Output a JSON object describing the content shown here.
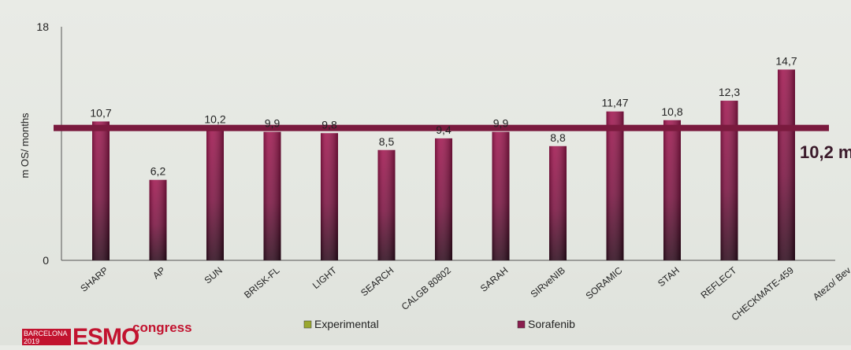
{
  "chart_data": {
    "type": "bar",
    "ylabel": "m OS/ months",
    "ylim": [
      0,
      18
    ],
    "yticks": [
      "0",
      "18"
    ],
    "categories": [
      "SHARP",
      "AP",
      "SUN",
      "BRISK-FL",
      "LIGHT",
      "SEARCH",
      "CALGB 80802",
      "SARAH",
      "SIRveNIB",
      "SORAMIC",
      "STAH",
      "REFLECT",
      "CHECKMATE-459",
      "Atezo/ Bev"
    ],
    "series": [
      {
        "name": "Sorafenib",
        "values": [
          10.7,
          6.2,
          10.2,
          9.9,
          9.8,
          8.5,
          9.4,
          9.9,
          8.8,
          11.47,
          10.8,
          12.3,
          14.7,
          null
        ],
        "labels": [
          "10,7",
          "6,2",
          "10,2",
          "9,9",
          "9,8",
          "8,5",
          "9,4",
          "9,9",
          "8,8",
          "11,47",
          "10,8",
          "12,3",
          "14,7",
          ""
        ]
      }
    ],
    "reference_line": {
      "value": 10.2,
      "label": "10,2 m"
    },
    "legend": [
      {
        "name": "Experimental",
        "color": "#9aa830"
      },
      {
        "name": "Sorafenib",
        "color": "#8a1f4f"
      }
    ],
    "legend_position": "bottom",
    "grid": false,
    "colors": {
      "bar_top": "#9c1650",
      "bar_bottom": "#2e0a1c",
      "reference": "#7a1a3e"
    }
  },
  "logo": {
    "city": "BARCELONA",
    "year": "2019",
    "brand": "ESMO",
    "word": "congress"
  }
}
